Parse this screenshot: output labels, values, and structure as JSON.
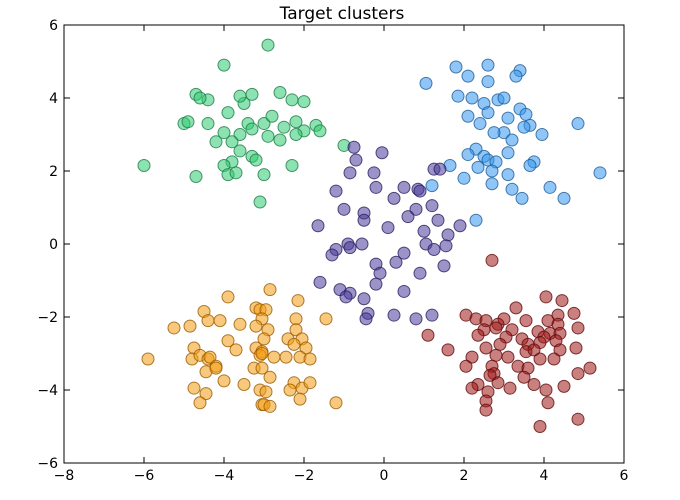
{
  "chart_data": {
    "type": "scatter",
    "title": "Target clusters",
    "xlabel": "",
    "ylabel": "",
    "xlim": [
      -8,
      6
    ],
    "ylim": [
      -6,
      6
    ],
    "xticks": [
      -8,
      -6,
      -4,
      -2,
      0,
      2,
      4,
      6
    ],
    "yticks": [
      -6,
      -4,
      -2,
      0,
      2,
      4,
      6
    ],
    "grid": false,
    "legend": "none",
    "series": [
      {
        "color": "#2ecc71",
        "edge": "#1e7a46",
        "points": [
          [
            -4.0,
            4.9
          ],
          [
            -2.9,
            5.45
          ],
          [
            -3.5,
            3.85
          ],
          [
            -3.6,
            4.05
          ],
          [
            -3.3,
            4.1
          ],
          [
            -2.6,
            4.15
          ],
          [
            -2.3,
            3.95
          ],
          [
            -2.0,
            3.9
          ],
          [
            -4.7,
            4.1
          ],
          [
            -4.4,
            3.95
          ],
          [
            -5.0,
            3.3
          ],
          [
            -4.4,
            3.3
          ],
          [
            -3.9,
            3.6
          ],
          [
            -3.4,
            3.3
          ],
          [
            -3.0,
            3.3
          ],
          [
            -2.8,
            3.5
          ],
          [
            -2.5,
            3.2
          ],
          [
            -2.2,
            3.35
          ],
          [
            -2.0,
            3.1
          ],
          [
            -1.7,
            3.25
          ],
          [
            -1.6,
            3.1
          ],
          [
            -4.0,
            3.05
          ],
          [
            -3.6,
            3.0
          ],
          [
            -3.3,
            3.15
          ],
          [
            -3.8,
            2.8
          ],
          [
            -2.9,
            2.95
          ],
          [
            -2.6,
            2.85
          ],
          [
            -2.2,
            3.0
          ],
          [
            -4.2,
            2.8
          ],
          [
            -3.6,
            2.55
          ],
          [
            -3.8,
            2.25
          ],
          [
            -3.3,
            2.4
          ],
          [
            -3.2,
            2.3
          ],
          [
            -4.0,
            2.15
          ],
          [
            -1.0,
            2.7
          ],
          [
            -2.3,
            2.15
          ],
          [
            -4.7,
            1.85
          ],
          [
            -3.9,
            1.9
          ],
          [
            -3.7,
            1.95
          ],
          [
            -3.0,
            1.9
          ],
          [
            -6.0,
            2.15
          ],
          [
            -3.1,
            1.15
          ],
          [
            -4.6,
            4.0
          ],
          [
            -4.9,
            3.35
          ]
        ]
      },
      {
        "color": "#3498f0",
        "edge": "#1f5d96",
        "points": [
          [
            1.8,
            4.85
          ],
          [
            2.6,
            4.9
          ],
          [
            3.4,
            4.75
          ],
          [
            1.05,
            4.4
          ],
          [
            2.1,
            4.6
          ],
          [
            2.6,
            4.45
          ],
          [
            3.3,
            4.6
          ],
          [
            1.85,
            4.05
          ],
          [
            2.2,
            4.0
          ],
          [
            2.5,
            3.85
          ],
          [
            2.85,
            3.95
          ],
          [
            3.0,
            4.0
          ],
          [
            3.4,
            3.7
          ],
          [
            3.55,
            3.55
          ],
          [
            3.65,
            3.25
          ],
          [
            4.85,
            3.3
          ],
          [
            2.1,
            3.5
          ],
          [
            2.6,
            3.6
          ],
          [
            3.1,
            3.45
          ],
          [
            2.4,
            3.3
          ],
          [
            3.0,
            3.05
          ],
          [
            3.5,
            3.2
          ],
          [
            3.95,
            3.0
          ],
          [
            2.75,
            3.05
          ],
          [
            3.2,
            2.85
          ],
          [
            2.3,
            2.6
          ],
          [
            2.1,
            2.45
          ],
          [
            2.5,
            2.4
          ],
          [
            2.6,
            2.3
          ],
          [
            2.8,
            2.25
          ],
          [
            3.1,
            2.5
          ],
          [
            3.75,
            2.25
          ],
          [
            3.65,
            2.15
          ],
          [
            2.35,
            2.1
          ],
          [
            2.7,
            2.0
          ],
          [
            3.1,
            1.9
          ],
          [
            2.0,
            1.8
          ],
          [
            1.65,
            2.15
          ],
          [
            2.7,
            1.65
          ],
          [
            3.2,
            1.5
          ],
          [
            4.15,
            1.55
          ],
          [
            3.45,
            1.25
          ],
          [
            4.5,
            1.25
          ],
          [
            5.4,
            1.95
          ],
          [
            1.2,
            1.6
          ],
          [
            2.3,
            0.65
          ]
        ]
      },
      {
        "color": "#4b3a9a",
        "edge": "#2b1f5e",
        "points": [
          [
            -0.75,
            2.65
          ],
          [
            -0.7,
            2.3
          ],
          [
            -0.05,
            2.5
          ],
          [
            -0.25,
            1.95
          ],
          [
            -0.85,
            1.95
          ],
          [
            -0.2,
            1.55
          ],
          [
            0.5,
            1.55
          ],
          [
            0.85,
            1.5
          ],
          [
            0.9,
            1.45
          ],
          [
            1.25,
            2.05
          ],
          [
            1.4,
            2.05
          ],
          [
            -1.2,
            1.45
          ],
          [
            0.25,
            1.25
          ],
          [
            1.2,
            1.05
          ],
          [
            0.8,
            0.95
          ],
          [
            0.6,
            0.75
          ],
          [
            -0.5,
            0.85
          ],
          [
            -1.0,
            0.95
          ],
          [
            -0.5,
            0.65
          ],
          [
            1.35,
            0.65
          ],
          [
            1.9,
            0.5
          ],
          [
            1.6,
            0.25
          ],
          [
            -1.65,
            0.5
          ],
          [
            0.1,
            0.45
          ],
          [
            1.0,
            0.35
          ],
          [
            -0.9,
            0.0
          ],
          [
            -0.85,
            -0.1
          ],
          [
            -0.55,
            0.0
          ],
          [
            1.05,
            0.0
          ],
          [
            1.25,
            -0.15
          ],
          [
            1.55,
            -0.05
          ],
          [
            -1.2,
            -0.15
          ],
          [
            -1.3,
            -0.3
          ],
          [
            0.5,
            -0.25
          ],
          [
            -0.2,
            -0.55
          ],
          [
            0.3,
            -0.5
          ],
          [
            1.5,
            -0.6
          ],
          [
            -1.6,
            -1.05
          ],
          [
            -0.1,
            -0.8
          ],
          [
            0.9,
            -0.8
          ],
          [
            -1.1,
            -1.25
          ],
          [
            -0.85,
            -1.35
          ],
          [
            -0.2,
            -1.1
          ],
          [
            0.5,
            -1.3
          ],
          [
            -0.95,
            -1.45
          ],
          [
            -0.5,
            -1.5
          ],
          [
            -0.4,
            -1.9
          ],
          [
            0.25,
            -1.95
          ],
          [
            0.8,
            -2.05
          ],
          [
            1.2,
            -1.95
          ],
          [
            -0.45,
            -2.05
          ]
        ]
      },
      {
        "color": "#f39c12",
        "edge": "#9a5a00",
        "points": [
          [
            -2.85,
            -1.25
          ],
          [
            -3.9,
            -1.45
          ],
          [
            -4.5,
            -1.85
          ],
          [
            -3.2,
            -1.75
          ],
          [
            -3.1,
            -1.8
          ],
          [
            -2.95,
            -1.8
          ],
          [
            -2.15,
            -1.55
          ],
          [
            -1.45,
            -2.05
          ],
          [
            -3.05,
            -2.05
          ],
          [
            -2.2,
            -2.05
          ],
          [
            -4.4,
            -2.1
          ],
          [
            -4.1,
            -2.1
          ],
          [
            -3.6,
            -2.2
          ],
          [
            -4.85,
            -2.25
          ],
          [
            -3.2,
            -2.25
          ],
          [
            -2.9,
            -2.35
          ],
          [
            -2.2,
            -2.35
          ],
          [
            -5.25,
            -2.3
          ],
          [
            -3.0,
            -2.6
          ],
          [
            -2.4,
            -2.6
          ],
          [
            -2.05,
            -2.6
          ],
          [
            -4.75,
            -2.85
          ],
          [
            -3.9,
            -2.65
          ],
          [
            -3.7,
            -2.9
          ],
          [
            -3.2,
            -2.85
          ],
          [
            -3.05,
            -2.95
          ],
          [
            -2.25,
            -2.75
          ],
          [
            -1.95,
            -2.85
          ],
          [
            -4.8,
            -3.15
          ],
          [
            -4.6,
            -3.05
          ],
          [
            -4.4,
            -3.15
          ],
          [
            -4.35,
            -3.1
          ],
          [
            -3.1,
            -3.05
          ],
          [
            -3.05,
            -3.0
          ],
          [
            -2.75,
            -3.1
          ],
          [
            -2.45,
            -3.1
          ],
          [
            -2.1,
            -3.1
          ],
          [
            -1.85,
            -3.15
          ],
          [
            -5.9,
            -3.15
          ],
          [
            -4.45,
            -3.5
          ],
          [
            -4.2,
            -3.35
          ],
          [
            -4.2,
            -3.4
          ],
          [
            -3.25,
            -3.4
          ],
          [
            -3.05,
            -3.4
          ],
          [
            -2.85,
            -3.65
          ],
          [
            -4.0,
            -3.75
          ],
          [
            -3.5,
            -3.85
          ],
          [
            -2.25,
            -3.8
          ],
          [
            -2.05,
            -3.95
          ],
          [
            -1.85,
            -3.8
          ],
          [
            -4.75,
            -3.95
          ],
          [
            -4.45,
            -4.1
          ],
          [
            -3.1,
            -4.0
          ],
          [
            -2.95,
            -4.05
          ],
          [
            -2.35,
            -4.0
          ],
          [
            -2.1,
            -4.25
          ],
          [
            -4.6,
            -4.35
          ],
          [
            -3.05,
            -4.4
          ],
          [
            -3.0,
            -4.4
          ],
          [
            -2.85,
            -4.45
          ],
          [
            -1.2,
            -4.35
          ]
        ]
      },
      {
        "color": "#a01818",
        "edge": "#5e0a0a",
        "points": [
          [
            4.05,
            -1.45
          ],
          [
            4.45,
            -1.55
          ],
          [
            3.3,
            -1.75
          ],
          [
            4.35,
            -1.95
          ],
          [
            4.75,
            -1.9
          ],
          [
            3.0,
            -2.05
          ],
          [
            3.55,
            -2.1
          ],
          [
            4.1,
            -2.1
          ],
          [
            2.05,
            -1.95
          ],
          [
            2.3,
            -2.05
          ],
          [
            2.55,
            -2.1
          ],
          [
            2.85,
            -2.2
          ],
          [
            4.35,
            -2.2
          ],
          [
            2.5,
            -2.35
          ],
          [
            2.8,
            -2.3
          ],
          [
            3.2,
            -2.35
          ],
          [
            3.85,
            -2.4
          ],
          [
            4.15,
            -2.45
          ],
          [
            4.4,
            -2.45
          ],
          [
            4.85,
            -2.3
          ],
          [
            2.35,
            -2.5
          ],
          [
            3.05,
            -2.55
          ],
          [
            3.45,
            -2.6
          ],
          [
            4.0,
            -2.55
          ],
          [
            4.3,
            -2.65
          ],
          [
            2.9,
            -2.75
          ],
          [
            3.6,
            -2.75
          ],
          [
            3.9,
            -2.7
          ],
          [
            2.55,
            -2.85
          ],
          [
            3.55,
            -2.95
          ],
          [
            3.75,
            -2.9
          ],
          [
            4.4,
            -2.9
          ],
          [
            4.8,
            -2.85
          ],
          [
            1.6,
            -2.9
          ],
          [
            2.2,
            -3.1
          ],
          [
            2.8,
            -3.05
          ],
          [
            3.1,
            -3.1
          ],
          [
            3.9,
            -3.15
          ],
          [
            4.25,
            -3.15
          ],
          [
            2.05,
            -3.35
          ],
          [
            2.7,
            -3.35
          ],
          [
            3.35,
            -3.35
          ],
          [
            3.6,
            -3.4
          ],
          [
            5.15,
            -3.4
          ],
          [
            2.75,
            -3.55
          ],
          [
            2.65,
            -3.6
          ],
          [
            4.85,
            -3.55
          ],
          [
            3.5,
            -3.65
          ],
          [
            2.35,
            -3.85
          ],
          [
            2.85,
            -3.8
          ],
          [
            3.75,
            -3.85
          ],
          [
            4.5,
            -3.9
          ],
          [
            2.2,
            -3.95
          ],
          [
            2.6,
            -4.05
          ],
          [
            3.15,
            -3.95
          ],
          [
            4.05,
            -4.0
          ],
          [
            2.55,
            -4.3
          ],
          [
            4.1,
            -4.35
          ],
          [
            2.55,
            -4.55
          ],
          [
            4.85,
            -4.8
          ],
          [
            3.9,
            -5.0
          ],
          [
            1.1,
            -2.5
          ],
          [
            2.7,
            -0.45
          ]
        ]
      }
    ]
  }
}
